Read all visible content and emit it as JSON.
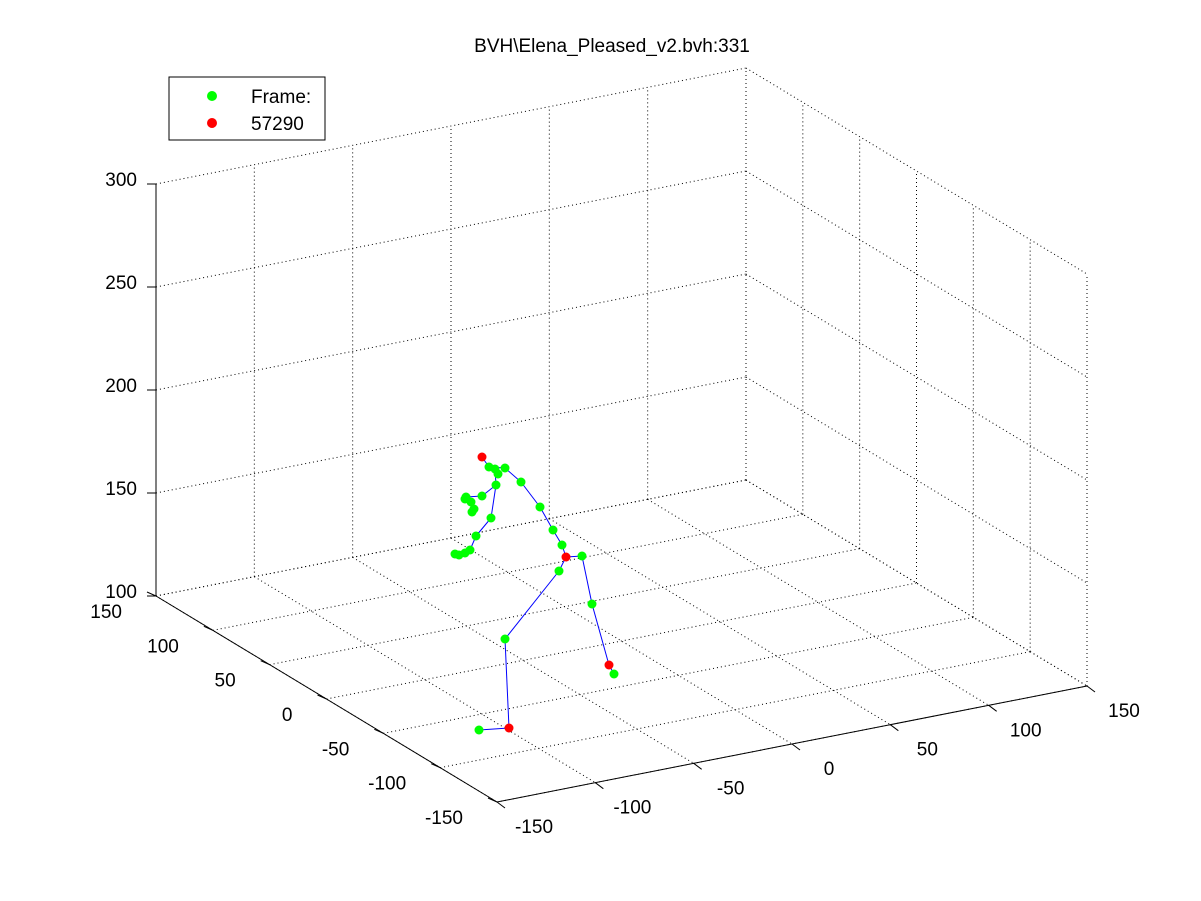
{
  "window": {
    "title": "BVH\\Elena_Pleased_v2.bvh:331"
  },
  "chart_data": {
    "type": "scatter3d",
    "title": "BVH\\Elena_Pleased_v2.bvh:331",
    "legend": {
      "position": "top-left",
      "entries": [
        {
          "label": "Frame:",
          "color": "#00ff00"
        },
        {
          "label": "57290",
          "color": "#ff0000"
        }
      ]
    },
    "axes": {
      "x": {
        "range": [
          -150,
          150
        ],
        "ticks": [
          -150,
          -100,
          -50,
          0,
          50,
          100,
          150
        ],
        "tick_labels": [
          "-150",
          "-100",
          "-50",
          "0",
          "50",
          "100",
          "150"
        ]
      },
      "y": {
        "range": [
          -150,
          150
        ],
        "ticks": [
          -150,
          -100,
          -50,
          0,
          50,
          100,
          150
        ],
        "tick_labels": [
          "-150",
          "-100",
          "-50",
          "0",
          "50",
          "100",
          "150"
        ]
      },
      "z": {
        "range": [
          100,
          300
        ],
        "ticks": [
          100,
          150,
          200,
          250,
          300
        ],
        "tick_labels": [
          "100",
          "150",
          "200",
          "250",
          "300"
        ]
      },
      "grid": true
    },
    "colors": {
      "joint": "#00ff00",
      "end_effector": "#ff0000",
      "bone": "#0000ff",
      "grid": "#000000"
    },
    "skeleton_screen_approx": {
      "green_points": [
        [
          489,
          467
        ],
        [
          495,
          469
        ],
        [
          505,
          468
        ],
        [
          498,
          474
        ],
        [
          496,
          485
        ],
        [
          482,
          496
        ],
        [
          521,
          482
        ],
        [
          540,
          507
        ],
        [
          553,
          530
        ],
        [
          562,
          545
        ],
        [
          582,
          556
        ],
        [
          592,
          604
        ],
        [
          614,
          674
        ],
        [
          559,
          571
        ],
        [
          505,
          639
        ],
        [
          479,
          730
        ],
        [
          491,
          518
        ],
        [
          476,
          536
        ],
        [
          470,
          550
        ],
        [
          465,
          553
        ],
        [
          459,
          555
        ],
        [
          455,
          554
        ],
        [
          466,
          497
        ],
        [
          471,
          502
        ],
        [
          474,
          509
        ],
        [
          472,
          512
        ],
        [
          465,
          499
        ]
      ],
      "red_points": [
        [
          482,
          457
        ],
        [
          566,
          557
        ],
        [
          609,
          665
        ],
        [
          509,
          728
        ]
      ],
      "bones": [
        [
          482,
          457,
          489,
          467
        ],
        [
          489,
          467,
          505,
          468
        ],
        [
          505,
          468,
          521,
          482
        ],
        [
          521,
          482,
          540,
          507
        ],
        [
          540,
          507,
          553,
          530
        ],
        [
          553,
          530,
          562,
          545
        ],
        [
          562,
          545,
          566,
          557
        ],
        [
          566,
          557,
          582,
          556
        ],
        [
          582,
          556,
          592,
          604
        ],
        [
          592,
          604,
          609,
          665
        ],
        [
          609,
          665,
          614,
          674
        ],
        [
          566,
          557,
          559,
          571
        ],
        [
          559,
          571,
          505,
          639
        ],
        [
          505,
          639,
          509,
          728
        ],
        [
          509,
          728,
          479,
          730
        ],
        [
          495,
          469,
          496,
          485
        ],
        [
          496,
          485,
          491,
          518
        ],
        [
          491,
          518,
          476,
          536
        ],
        [
          476,
          536,
          470,
          550
        ],
        [
          470,
          550,
          459,
          555
        ],
        [
          496,
          485,
          482,
          496
        ],
        [
          482,
          496,
          466,
          497
        ]
      ]
    }
  }
}
